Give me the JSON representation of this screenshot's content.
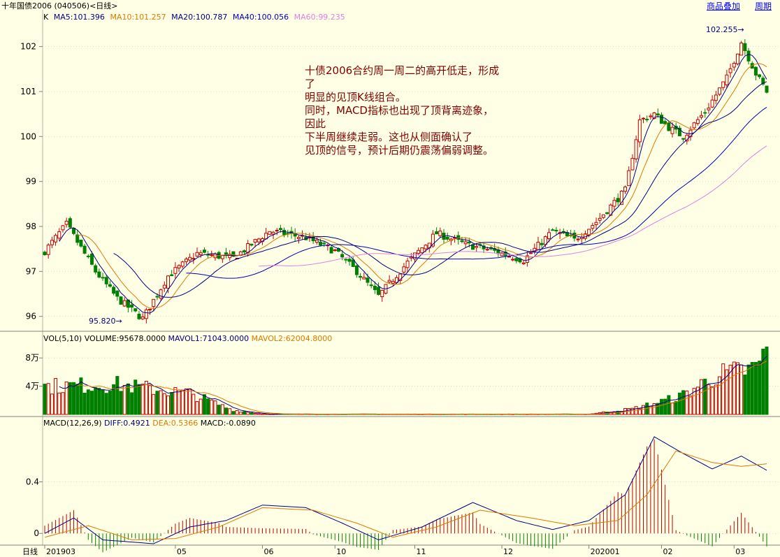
{
  "header": {
    "title": "十年国债2006 (040506)<日线>",
    "link_overlay": "商品叠加",
    "link_period": "周期"
  },
  "price_panel": {
    "k_label": "K",
    "ma": [
      {
        "text": "MA5:101.396",
        "color": "#000080"
      },
      {
        "text": "MA10:101.257",
        "color": "#e07800"
      },
      {
        "text": "MA20:100.787",
        "color": "#000080"
      },
      {
        "text": "MA40:100.056",
        "color": "#0000c0"
      },
      {
        "text": "MA60:99.235",
        "color": "#e080e0"
      }
    ],
    "y_ticks": [
      "102",
      "101",
      "100",
      "99",
      "98",
      "97",
      "96"
    ],
    "high_label": "102.255",
    "low_label": "95.820"
  },
  "vol_panel": {
    "title": "VOL(5,10)",
    "volume": "VOLUME:95678.0000",
    "mavol1": "MAVOL1:71043.0000",
    "mavol2": "MAVOL2:62004.8000",
    "y_ticks": [
      "8万",
      "4万"
    ]
  },
  "macd_panel": {
    "title": "MACD(12,26,9)",
    "diff": "DIFF:0.4921",
    "dea": "DEA:0.5366",
    "macd": "MACD:-0.0890",
    "y_ticks": [
      "0.4",
      "0"
    ]
  },
  "x_axis": {
    "label": "日线",
    "ticks": [
      "201903",
      "05",
      "06",
      "10",
      "11",
      "12",
      "202001",
      "02",
      "03"
    ]
  },
  "annotation": [
    "十债2006合约周一周二的高开低走，形成",
    "了",
    "明显的见顶K线组合。",
    "同时，MACD指标也出现了顶背离迹象，",
    "因此",
    "下半周继续走弱。这也从侧面确认了",
    "见顶的信号，预计后期仍震荡偏弱调整。"
  ],
  "colors": {
    "up": "#c00000",
    "down": "#008000",
    "background": "#ffffe6",
    "grid": "#d8d8c8"
  },
  "chart_data": {
    "type": "candlestick",
    "title": "十年国债2006 (040506)<日线>",
    "price_ylim": [
      95.7,
      102.6
    ],
    "price_keypoints": [
      {
        "bar": 0,
        "close": 97.45
      },
      {
        "bar": 6,
        "close": 98.05
      },
      {
        "bar": 14,
        "close": 97.0
      },
      {
        "bar": 20,
        "close": 96.4
      },
      {
        "bar": 27,
        "close": 95.95
      },
      {
        "bar": 34,
        "close": 96.9
      },
      {
        "bar": 42,
        "close": 97.4
      },
      {
        "bar": 52,
        "close": 97.3
      },
      {
        "bar": 62,
        "close": 97.9
      },
      {
        "bar": 72,
        "close": 97.75
      },
      {
        "bar": 80,
        "close": 97.45
      },
      {
        "bar": 86,
        "close": 97.0
      },
      {
        "bar": 92,
        "close": 96.45
      },
      {
        "bar": 100,
        "close": 97.2
      },
      {
        "bar": 108,
        "close": 97.85
      },
      {
        "bar": 116,
        "close": 97.6
      },
      {
        "bar": 124,
        "close": 97.45
      },
      {
        "bar": 132,
        "close": 97.25
      },
      {
        "bar": 140,
        "close": 97.9
      },
      {
        "bar": 146,
        "close": 97.7
      },
      {
        "bar": 152,
        "close": 98.1
      },
      {
        "bar": 160,
        "close": 98.8
      },
      {
        "bar": 164,
        "close": 100.35
      },
      {
        "bar": 168,
        "close": 100.5
      },
      {
        "bar": 172,
        "close": 100.2
      },
      {
        "bar": 176,
        "close": 100.0
      },
      {
        "bar": 182,
        "close": 100.55
      },
      {
        "bar": 188,
        "close": 101.3
      },
      {
        "bar": 192,
        "close": 102.1
      },
      {
        "bar": 196,
        "close": 101.4
      },
      {
        "bar": 199,
        "close": 101.0
      }
    ],
    "volume_ylim": [
      0,
      100000
    ],
    "volume_keypoints": [
      {
        "bar": 0,
        "value": 40000
      },
      {
        "bar": 20,
        "value": 42000
      },
      {
        "bar": 40,
        "value": 30000
      },
      {
        "bar": 52,
        "value": 6000
      },
      {
        "bar": 60,
        "value": 500
      },
      {
        "bar": 150,
        "value": 500
      },
      {
        "bar": 162,
        "value": 8000
      },
      {
        "bar": 175,
        "value": 25000
      },
      {
        "bar": 185,
        "value": 55000
      },
      {
        "bar": 196,
        "value": 65000
      },
      {
        "bar": 199,
        "value": 95678
      }
    ],
    "macd_ylim": [
      -0.08,
      0.82
    ],
    "diff_keypoints": [
      {
        "bar": 0,
        "value": 0.0
      },
      {
        "bar": 8,
        "value": 0.12
      },
      {
        "bar": 16,
        "value": -0.05
      },
      {
        "bar": 30,
        "value": -0.08
      },
      {
        "bar": 40,
        "value": 0.05
      },
      {
        "bar": 50,
        "value": 0.1
      },
      {
        "bar": 60,
        "value": 0.22
      },
      {
        "bar": 72,
        "value": 0.2
      },
      {
        "bar": 82,
        "value": 0.08
      },
      {
        "bar": 92,
        "value": -0.05
      },
      {
        "bar": 104,
        "value": 0.05
      },
      {
        "bar": 118,
        "value": 0.24
      },
      {
        "bar": 130,
        "value": 0.1
      },
      {
        "bar": 140,
        "value": 0.03
      },
      {
        "bar": 150,
        "value": 0.1
      },
      {
        "bar": 160,
        "value": 0.3
      },
      {
        "bar": 168,
        "value": 0.75
      },
      {
        "bar": 176,
        "value": 0.62
      },
      {
        "bar": 184,
        "value": 0.5
      },
      {
        "bar": 192,
        "value": 0.6
      },
      {
        "bar": 199,
        "value": 0.49
      }
    ],
    "dea_keypoints": [
      {
        "bar": 0,
        "value": -0.03
      },
      {
        "bar": 12,
        "value": 0.06
      },
      {
        "bar": 24,
        "value": -0.05
      },
      {
        "bar": 36,
        "value": -0.04
      },
      {
        "bar": 48,
        "value": 0.05
      },
      {
        "bar": 60,
        "value": 0.2
      },
      {
        "bar": 74,
        "value": 0.18
      },
      {
        "bar": 86,
        "value": 0.08
      },
      {
        "bar": 96,
        "value": -0.03
      },
      {
        "bar": 108,
        "value": 0.05
      },
      {
        "bar": 120,
        "value": 0.18
      },
      {
        "bar": 134,
        "value": 0.12
      },
      {
        "bar": 146,
        "value": 0.06
      },
      {
        "bar": 158,
        "value": 0.1
      },
      {
        "bar": 166,
        "value": 0.3
      },
      {
        "bar": 174,
        "value": 0.64
      },
      {
        "bar": 184,
        "value": 0.55
      },
      {
        "bar": 192,
        "value": 0.52
      },
      {
        "bar": 199,
        "value": 0.54
      }
    ],
    "x_ticks": [
      {
        "label": "201903",
        "bar": 0
      },
      {
        "label": "05",
        "bar": 36
      },
      {
        "label": "06",
        "bar": 60
      },
      {
        "label": "10",
        "bar": 80
      },
      {
        "label": "11",
        "bar": 102
      },
      {
        "label": "12",
        "bar": 126
      },
      {
        "label": "202001",
        "bar": 150
      },
      {
        "label": "02",
        "bar": 170
      },
      {
        "label": "03",
        "bar": 190
      }
    ],
    "bars_count": 200,
    "grid": true
  }
}
